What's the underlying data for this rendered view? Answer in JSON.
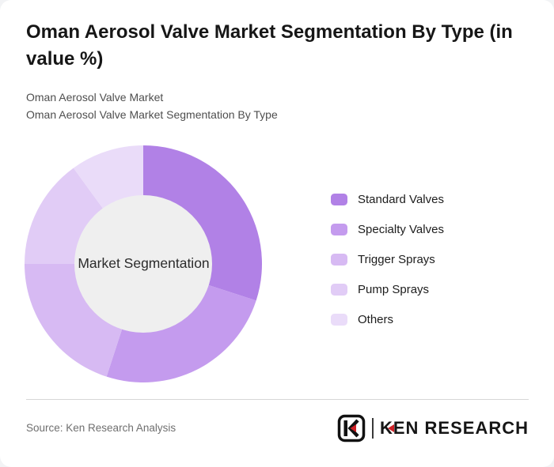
{
  "header": {
    "title": "Oman Aerosol Valve Market Segmentation By Type (in value %)",
    "subtitle_line1": "Oman Aerosol Valve Market",
    "subtitle_line2": "Oman Aerosol Valve Market Segmentation By Type"
  },
  "chart_data": {
    "type": "pie",
    "variant": "donut",
    "title": "Oman Aerosol Valve Market Segmentation By Type (in value %)",
    "center_label": "Market Segmentation",
    "categories": [
      "Standard Valves",
      "Specialty Valves",
      "Trigger Sprays",
      "Pump Sprays",
      "Others"
    ],
    "values": [
      30,
      25,
      20,
      15,
      10
    ],
    "unit": "percent of market value",
    "colors": [
      "#b181e6",
      "#c49bee",
      "#d7baf3",
      "#e1ccf6",
      "#eadcf9"
    ],
    "start_angle_deg": 0,
    "direction": "clockwise",
    "inner_radius_ratio": 0.58,
    "center_fill": "#efefef",
    "legend_position": "right"
  },
  "footer": {
    "source": "Source: Ken Research Analysis",
    "logo_text": "KEN RESEARCH"
  }
}
